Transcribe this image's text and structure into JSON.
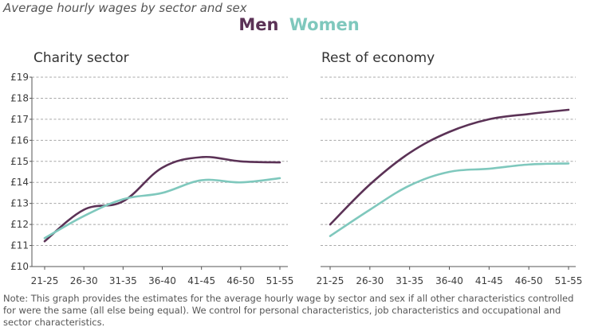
{
  "title": "Average hourly wages by sector and sex",
  "legend": {
    "men": "Men",
    "women": "Women"
  },
  "colors": {
    "men": "#5b3256",
    "women": "#7fc8bd",
    "axis": "#555555",
    "grid": "#a8a8a8",
    "text": "#3c3c3c"
  },
  "note": "Note: This graph provides the estimates for the average hourly wage by sector and sex if all other characteristics controlled for were the same (all else being equal). We control for personal characteristics, job characteristics and occupational and sector characteristics.",
  "chart_data": [
    {
      "type": "line",
      "title": "Charity sector",
      "categories": [
        "21-25",
        "26-30",
        "31-35",
        "36-40",
        "41-45",
        "46-50",
        "51-55"
      ],
      "ylim": [
        10,
        19
      ],
      "yticks": [
        "£10",
        "£11",
        "£12",
        "£13",
        "£14",
        "£15",
        "£16",
        "£17",
        "£18",
        "£19"
      ],
      "grid": true,
      "series": [
        {
          "name": "Men",
          "values": [
            11.2,
            12.7,
            13.1,
            14.7,
            15.2,
            15.0,
            14.95
          ]
        },
        {
          "name": "Women",
          "values": [
            11.35,
            12.4,
            13.2,
            13.5,
            14.1,
            14.0,
            14.2
          ]
        }
      ]
    },
    {
      "type": "line",
      "title": "Rest of economy",
      "categories": [
        "21-25",
        "26-30",
        "31-35",
        "36-40",
        "41-45",
        "46-50",
        "51-55"
      ],
      "ylim": [
        10,
        19
      ],
      "grid": true,
      "series": [
        {
          "name": "Men",
          "values": [
            12.0,
            13.9,
            15.4,
            16.4,
            17.0,
            17.25,
            17.45
          ]
        },
        {
          "name": "Women",
          "values": [
            11.45,
            12.7,
            13.85,
            14.5,
            14.65,
            14.85,
            14.9
          ]
        }
      ]
    }
  ]
}
